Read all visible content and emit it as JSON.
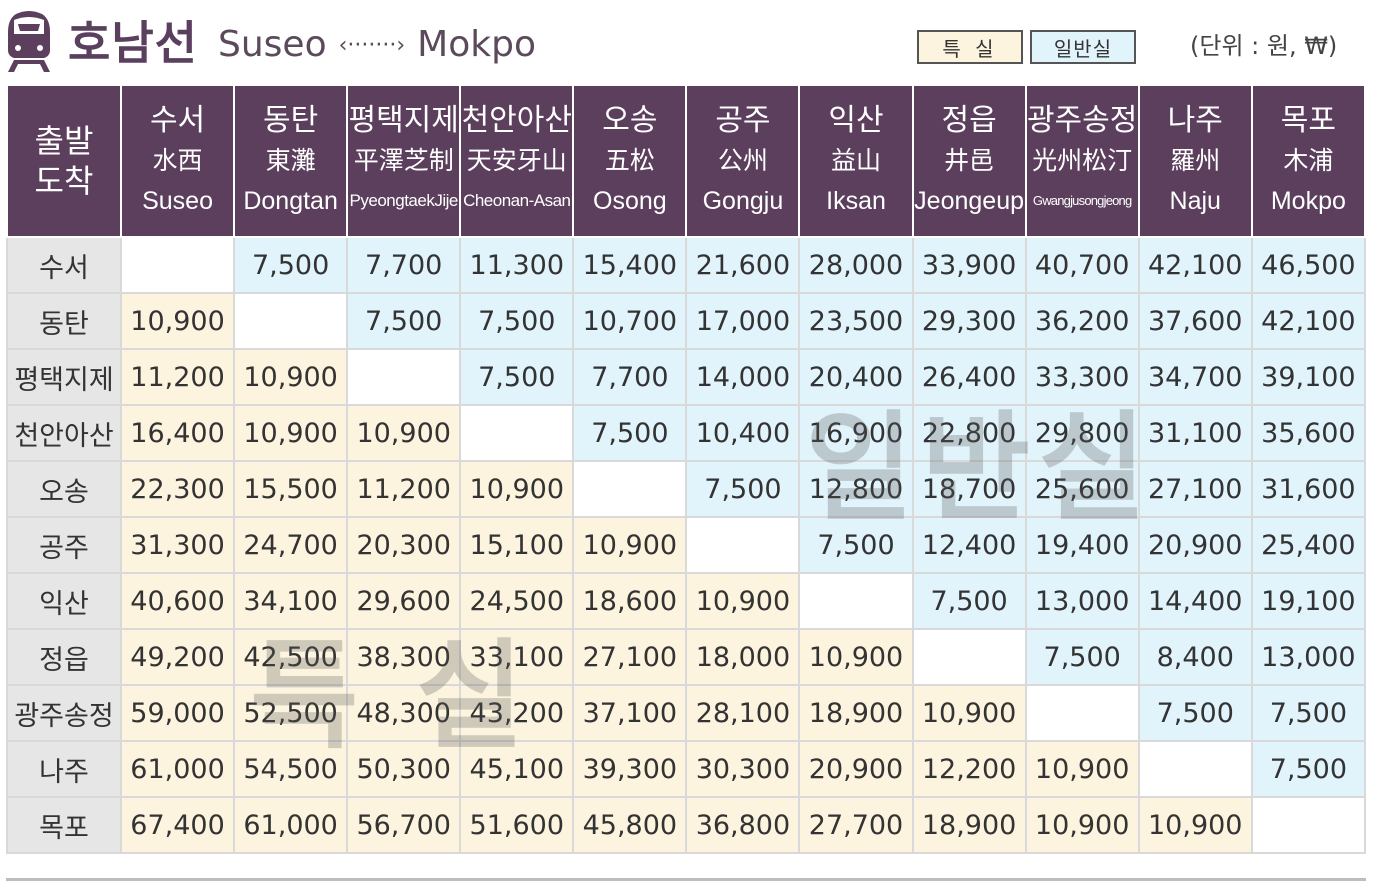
{
  "header": {
    "line_name": "호남선",
    "route_from": "Suseo",
    "route_arrow": "‹·······›",
    "route_to": "Mokpo",
    "legend_first": "특 실",
    "legend_general": "일반실",
    "unit": "(단위 : 원, ₩)"
  },
  "colors": {
    "brand": "#5b3f5c",
    "first_class_cell": "#fdf4df",
    "general_class_cell": "#e1f3fb",
    "row_header": "#e6e6e6"
  },
  "watermarks": {
    "general": "일반실",
    "first": "특 실"
  },
  "table": {
    "corner": {
      "line1": "출발",
      "line2": "도착"
    },
    "columns": [
      {
        "ko": "수서",
        "hanja": "水西",
        "en": "Suseo"
      },
      {
        "ko": "동탄",
        "hanja": "東灘",
        "en": "Dongtan"
      },
      {
        "ko": "평택지제",
        "hanja": "平澤芝制",
        "en": "PyeongtaekJije"
      },
      {
        "ko": "천안아산",
        "hanja": "天安牙山",
        "en": "Cheonan-Asan"
      },
      {
        "ko": "오송",
        "hanja": "五松",
        "en": "Osong"
      },
      {
        "ko": "공주",
        "hanja": "公州",
        "en": "Gongju"
      },
      {
        "ko": "익산",
        "hanja": "益山",
        "en": "Iksan"
      },
      {
        "ko": "정읍",
        "hanja": "井邑",
        "en": "Jeongeup"
      },
      {
        "ko": "광주송정",
        "hanja": "光州松汀",
        "en": "Gwangjusongjeong"
      },
      {
        "ko": "나주",
        "hanja": "羅州",
        "en": "Naju"
      },
      {
        "ko": "목포",
        "hanja": "木浦",
        "en": "Mokpo"
      }
    ],
    "rows": [
      {
        "name": "수서",
        "cells": [
          "",
          "7,500",
          "7,700",
          "11,300",
          "15,400",
          "21,600",
          "28,000",
          "33,900",
          "40,700",
          "42,100",
          "46,500"
        ]
      },
      {
        "name": "동탄",
        "cells": [
          "10,900",
          "",
          "7,500",
          "7,500",
          "10,700",
          "17,000",
          "23,500",
          "29,300",
          "36,200",
          "37,600",
          "42,100"
        ]
      },
      {
        "name": "평택지제",
        "cells": [
          "11,200",
          "10,900",
          "",
          "7,500",
          "7,700",
          "14,000",
          "20,400",
          "26,400",
          "33,300",
          "34,700",
          "39,100"
        ]
      },
      {
        "name": "천안아산",
        "cells": [
          "16,400",
          "10,900",
          "10,900",
          "",
          "7,500",
          "10,400",
          "16,900",
          "22,800",
          "29,800",
          "31,100",
          "35,600"
        ]
      },
      {
        "name": "오송",
        "cells": [
          "22,300",
          "15,500",
          "11,200",
          "10,900",
          "",
          "7,500",
          "12,800",
          "18,700",
          "25,600",
          "27,100",
          "31,600"
        ]
      },
      {
        "name": "공주",
        "cells": [
          "31,300",
          "24,700",
          "20,300",
          "15,100",
          "10,900",
          "",
          "7,500",
          "12,400",
          "19,400",
          "20,900",
          "25,400"
        ]
      },
      {
        "name": "익산",
        "cells": [
          "40,600",
          "34,100",
          "29,600",
          "24,500",
          "18,600",
          "10,900",
          "",
          "7,500",
          "13,000",
          "14,400",
          "19,100"
        ]
      },
      {
        "name": "정읍",
        "cells": [
          "49,200",
          "42,500",
          "38,300",
          "33,100",
          "27,100",
          "18,000",
          "10,900",
          "",
          "7,500",
          "8,400",
          "13,000"
        ]
      },
      {
        "name": "광주송정",
        "cells": [
          "59,000",
          "52,500",
          "48,300",
          "43,200",
          "37,100",
          "28,100",
          "18,900",
          "10,900",
          "",
          "7,500",
          "7,500"
        ]
      },
      {
        "name": "나주",
        "cells": [
          "61,000",
          "54,500",
          "50,300",
          "45,100",
          "39,300",
          "30,300",
          "20,900",
          "12,200",
          "10,900",
          "",
          "7,500"
        ]
      },
      {
        "name": "목포",
        "cells": [
          "67,400",
          "61,000",
          "56,700",
          "51,600",
          "45,800",
          "36,800",
          "27,700",
          "18,900",
          "10,900",
          "10,900",
          ""
        ]
      }
    ]
  }
}
